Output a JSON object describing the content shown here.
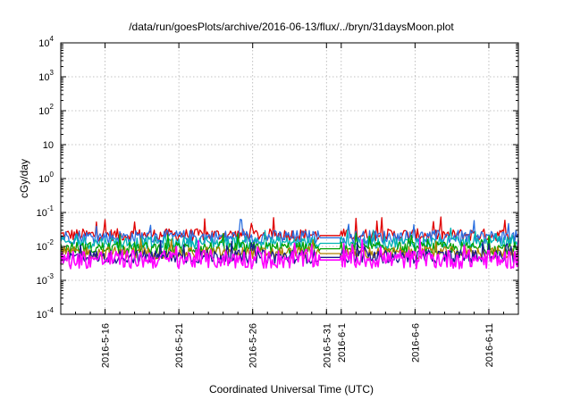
{
  "chart_data": {
    "type": "line",
    "title": "/data/run/goesPlots/archive/2016-06-13/flux/../bryn/31daysMoon.plot",
    "xlabel": "Coordinated Universal Time (UTC)",
    "ylabel": "cGy/day",
    "x_scale": "time",
    "y_scale": "log",
    "xlim": [
      "2016-05-13",
      "2016-06-13"
    ],
    "ylim": [
      0.0001,
      10000
    ],
    "grid": true,
    "legend": "none",
    "x_ticks": [
      {
        "date": "2016-05-16",
        "label": "2016-5-16"
      },
      {
        "date": "2016-05-21",
        "label": "2016-5-21"
      },
      {
        "date": "2016-05-26",
        "label": "2016-5-26"
      },
      {
        "date": "2016-05-31",
        "label": "2016-5-31"
      },
      {
        "date": "2016-06-01",
        "label": "2016-6-1"
      },
      {
        "date": "2016-06-06",
        "label": "2016-6-6"
      },
      {
        "date": "2016-06-11",
        "label": "2016-6-11"
      }
    ],
    "y_ticks": [
      {
        "value": 0.0001,
        "base": "10",
        "exp": "-4"
      },
      {
        "value": 0.001,
        "base": "10",
        "exp": "-3"
      },
      {
        "value": 0.01,
        "base": "10",
        "exp": "-2"
      },
      {
        "value": 0.1,
        "base": "10",
        "exp": "-1"
      },
      {
        "value": 1,
        "base": "10",
        "exp": "0"
      },
      {
        "value": 10,
        "base": "10",
        "exp": ""
      },
      {
        "value": 100,
        "base": "10",
        "exp": "2"
      },
      {
        "value": 1000,
        "base": "10",
        "exp": "3"
      },
      {
        "value": 10000,
        "base": "10",
        "exp": "4"
      }
    ],
    "gap": [
      "2016-05-30T12:00",
      "2016-06-01T00:00"
    ],
    "series": [
      {
        "color": "#e00000",
        "level": 0.022,
        "spread": 0.18,
        "spike": 0.075
      },
      {
        "color": "#2a6fe0",
        "level": 0.019,
        "spread": 0.2,
        "spike": 0.065
      },
      {
        "color": "#00b4b4",
        "level": 0.013,
        "spread": 0.18,
        "spike": 0.035
      },
      {
        "color": "#00a000",
        "level": 0.009,
        "spread": 0.18,
        "spike": 0.025
      },
      {
        "color": "#b08000",
        "level": 0.0065,
        "spread": 0.18,
        "spike": 0.018
      },
      {
        "color": "#1a1a8c",
        "level": 0.005,
        "spread": 0.2,
        "spike": 0.015
      },
      {
        "color": "#ff00ff",
        "level": 0.0042,
        "spread": 0.28,
        "spike": 0.016
      }
    ]
  }
}
